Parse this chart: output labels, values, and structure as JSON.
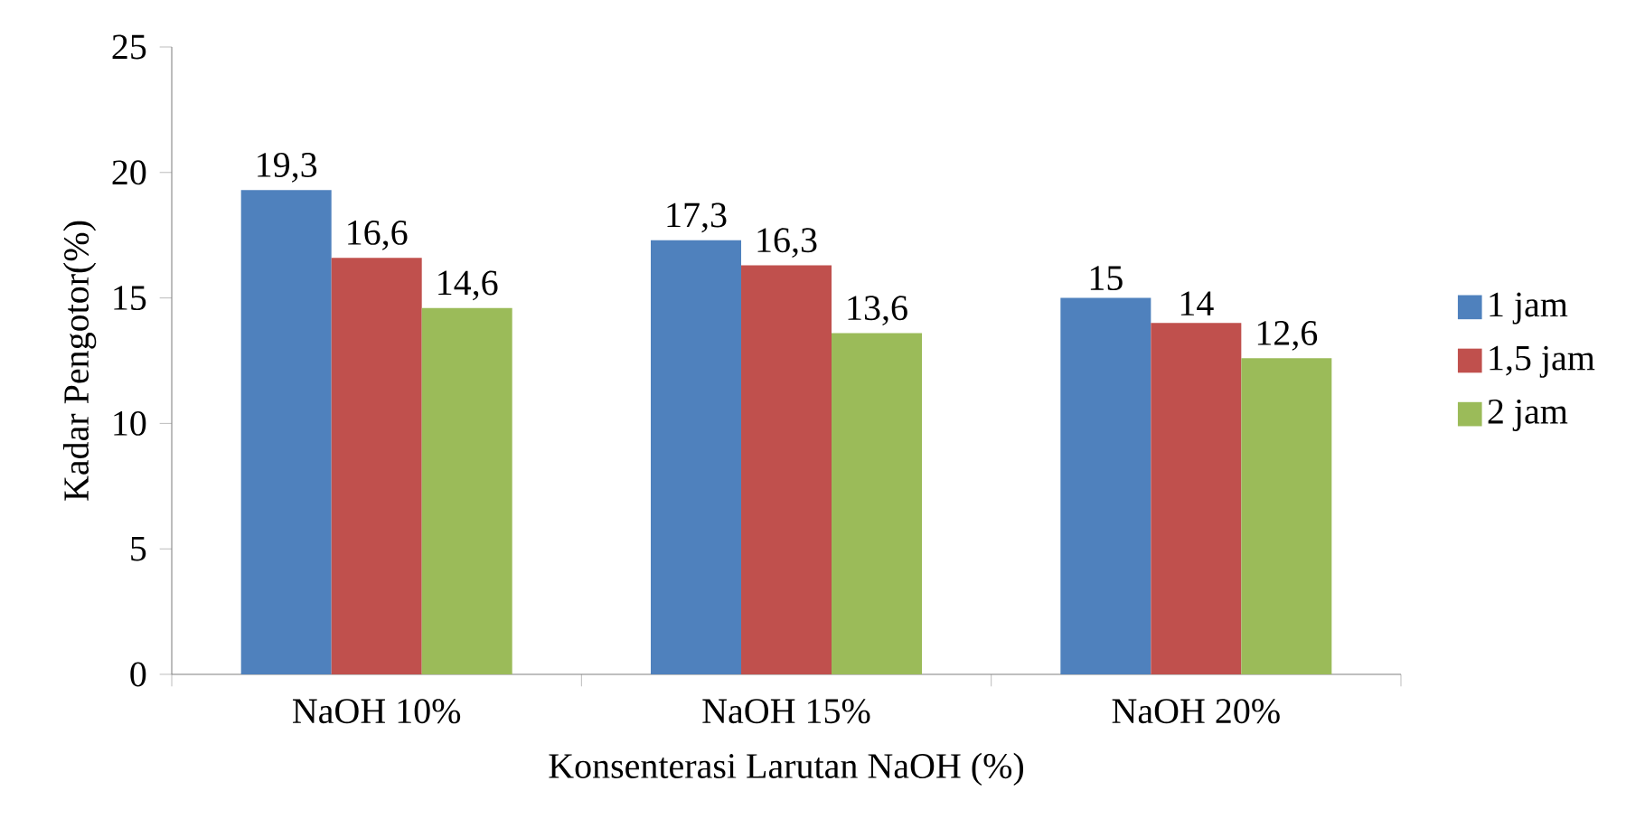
{
  "chart_data": {
    "type": "bar",
    "xlabel": "Konsenterasi Larutan NaOH (%)",
    "ylabel": "Kadar Pengotor(%)",
    "categories": [
      "NaOH 10%",
      "NaOH 15%",
      "NaOH 20%"
    ],
    "series": [
      {
        "name": "1 jam",
        "color": "#4f81bd",
        "values": [
          19.3,
          17.3,
          15
        ],
        "value_labels": [
          "19,3",
          "17,3",
          "15"
        ]
      },
      {
        "name": "1,5 jam",
        "color": "#c0504d",
        "values": [
          16.6,
          16.3,
          14
        ],
        "value_labels": [
          "16,6",
          "16,3",
          "14"
        ]
      },
      {
        "name": "2 jam",
        "color": "#9bbb59",
        "values": [
          14.6,
          13.6,
          12.6
        ],
        "value_labels": [
          "14,6",
          "13,6",
          "12,6"
        ]
      }
    ],
    "ylim": [
      0,
      25
    ],
    "yticks": [
      0,
      5,
      10,
      15,
      20,
      25
    ],
    "grid": false,
    "legend": "right"
  }
}
